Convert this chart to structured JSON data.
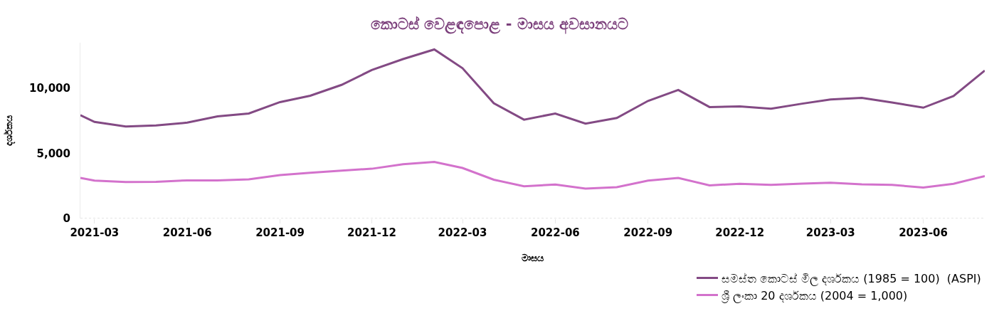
{
  "chart_data": {
    "type": "line",
    "title": "කොටස් වෙළඳපොළ - මාසය අවසානයට",
    "xlabel": "මාසය",
    "ylabel": "දර්ශකය",
    "x": [
      "2021-02-15",
      "2021-03-01",
      "2021-04-01",
      "2021-05-01",
      "2021-06-01",
      "2021-07-01",
      "2021-08-01",
      "2021-09-01",
      "2021-10-01",
      "2021-11-01",
      "2021-12-01",
      "2022-01-01",
      "2022-02-01",
      "2022-03-01",
      "2022-04-01",
      "2022-05-01",
      "2022-06-01",
      "2022-07-01",
      "2022-08-01",
      "2022-09-01",
      "2022-10-01",
      "2022-11-01",
      "2022-12-01",
      "2023-01-01",
      "2023-02-01",
      "2023-03-01",
      "2023-04-01",
      "2023-05-01",
      "2023-06-01",
      "2023-07-01",
      "2023-08-01"
    ],
    "series": [
      {
        "name": "සමස්ත කොටස් මිල දර්ශකය (1985 = 100)  (ASPI)",
        "color": "#834a84",
        "values": [
          7940,
          7420,
          7060,
          7150,
          7360,
          7840,
          8060,
          8940,
          9430,
          10260,
          11400,
          12240,
          12980,
          11540,
          8850,
          7590,
          8060,
          7290,
          7720,
          9030,
          9870,
          8560,
          8610,
          8430,
          8820,
          9140,
          9260,
          8910,
          8510,
          9400,
          11360
        ]
      },
      {
        "name": "ශ්‍රී ලංකා 20 දර්ශකය (2004 = 1,000)",
        "color": "#d372cc",
        "values": [
          3120,
          2910,
          2800,
          2810,
          2930,
          2930,
          3010,
          3330,
          3510,
          3680,
          3820,
          4170,
          4350,
          3880,
          2980,
          2470,
          2610,
          2300,
          2400,
          2910,
          3120,
          2540,
          2670,
          2580,
          2680,
          2740,
          2630,
          2580,
          2380,
          2670,
          3260
        ]
      }
    ],
    "xlim": [
      "2021-02-15",
      "2023-08-01"
    ],
    "xticks": [
      {
        "value": "2021-03-01",
        "label": "2021-03"
      },
      {
        "value": "2021-06-01",
        "label": "2021-06"
      },
      {
        "value": "2021-09-01",
        "label": "2021-09"
      },
      {
        "value": "2021-12-01",
        "label": "2021-12"
      },
      {
        "value": "2022-03-01",
        "label": "2022-03"
      },
      {
        "value": "2022-06-01",
        "label": "2022-06"
      },
      {
        "value": "2022-09-01",
        "label": "2022-09"
      },
      {
        "value": "2022-12-01",
        "label": "2022-12"
      },
      {
        "value": "2023-03-01",
        "label": "2023-03"
      },
      {
        "value": "2023-06-01",
        "label": "2023-06"
      }
    ],
    "ylim": [
      0,
      13500
    ],
    "yticks": [
      {
        "value": 0,
        "label": "0"
      },
      {
        "value": 5000,
        "label": "5,000"
      },
      {
        "value": 10000,
        "label": "10,000"
      }
    ],
    "grid": false,
    "legend": "bottom right",
    "marker": "none",
    "line_style": "solid"
  }
}
